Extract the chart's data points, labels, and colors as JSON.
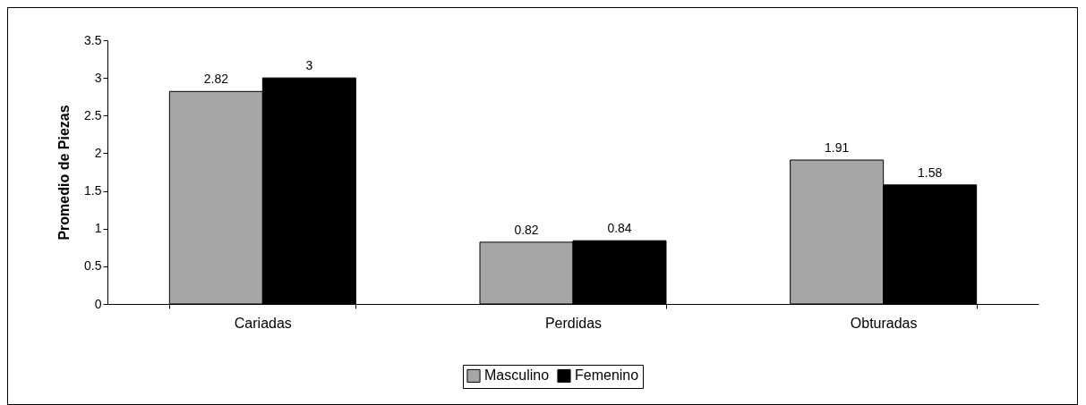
{
  "chart_data": {
    "type": "bar",
    "ylabel": "Promedio de Piezas",
    "categories": [
      "Cariadas",
      "Perdidas",
      "Obturadas"
    ],
    "series": [
      {
        "name": "Masculino",
        "color": "#a6a6a6",
        "values": [
          2.82,
          0.82,
          1.91
        ]
      },
      {
        "name": "Femenino",
        "color": "#000000",
        "values": [
          3,
          0.84,
          1.58
        ]
      }
    ],
    "ylim": [
      0,
      3.5
    ],
    "yticks": [
      0,
      0.5,
      1,
      1.5,
      2,
      2.5,
      3,
      3.5
    ],
    "grid": false,
    "legend": "bottom",
    "data_labels": true
  }
}
